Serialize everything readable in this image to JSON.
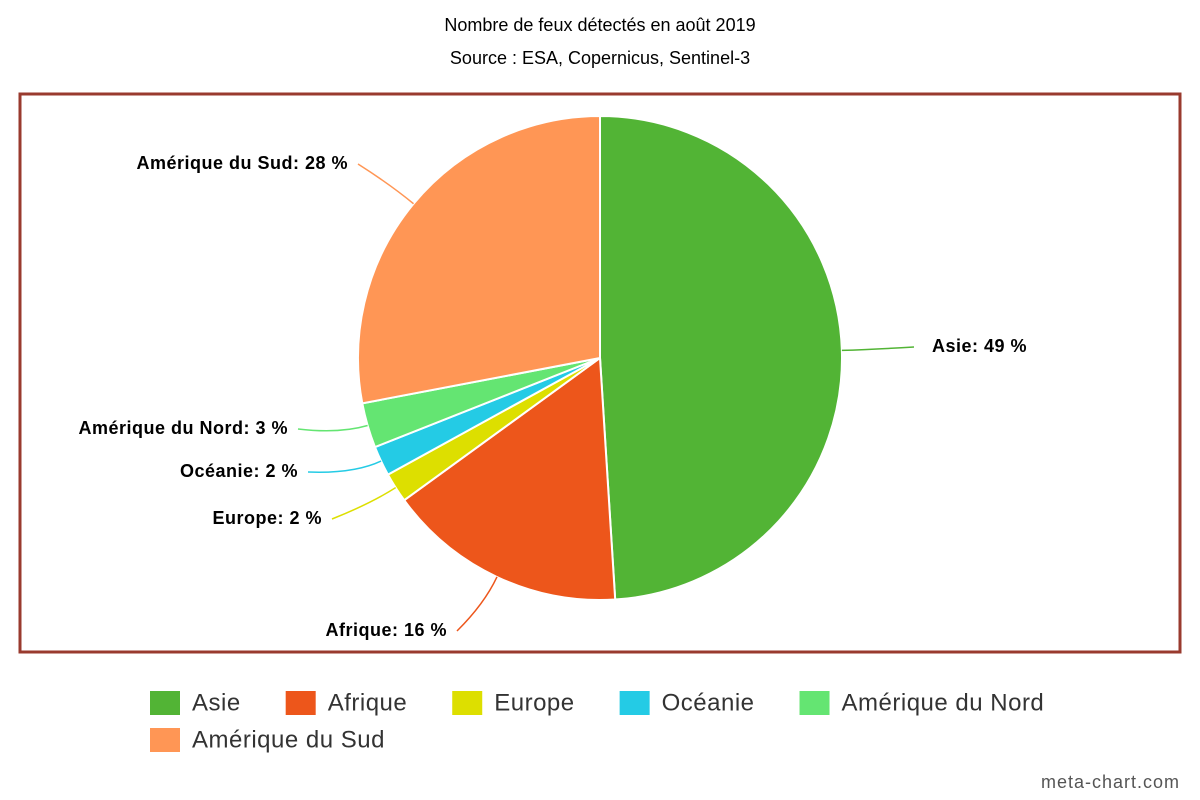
{
  "chart_data": {
    "type": "pie",
    "title": "Nombre de feux détectés en août 2019",
    "subtitle": "Source : ESA, Copernicus, Sentinel-3",
    "categories": [
      "Asie",
      "Afrique",
      "Europe",
      "Océanie",
      "Amérique du Nord",
      "Amérique du Sud"
    ],
    "values": [
      49,
      16,
      2,
      2,
      3,
      28
    ],
    "value_labels": [
      "Asie: 49 %",
      "Afrique: 16 %",
      "Europe: 2 %",
      "Océanie: 2 %",
      "Amérique du Nord: 3 %",
      "Amérique du Sud: 28 %"
    ],
    "colors": [
      "#52b435",
      "#ed561b",
      "#dddf00",
      "#24cbe5",
      "#64e572",
      "#ff9655"
    ],
    "credit": "meta-chart.com"
  }
}
